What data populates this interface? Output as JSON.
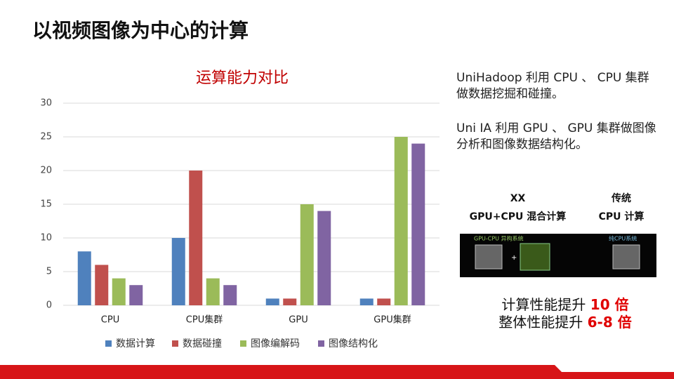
{
  "slide": {
    "title": "以视频图像为中心的计算",
    "notes": [
      "UniHadoop 利用 CPU 、 CPU 集群做数据挖掘和碰撞。",
      "Uni IA  利用 GPU 、 GPU 集群做图像分析和图像数据结构化。"
    ],
    "left_header": [
      "XX",
      "GPU+CPU 混合计算"
    ],
    "right_header": [
      "传统",
      "CPU 计算"
    ],
    "image_labels": [
      "GPU-CPU 异构系统",
      "纯CPU系统"
    ],
    "results": [
      {
        "text": "计算性能提升",
        "highlight": "10 倍"
      },
      {
        "text": "整体性能提升",
        "highlight": "6-8 倍"
      }
    ]
  },
  "chart_data": {
    "type": "bar",
    "title": "运算能力对比",
    "categories": [
      "CPU",
      "CPU集群",
      "GPU",
      "GPU集群"
    ],
    "series": [
      {
        "name": "数据计算",
        "color": "#4f81bd",
        "values": [
          8,
          10,
          1,
          1
        ]
      },
      {
        "name": "数据碰撞",
        "color": "#c0504d",
        "values": [
          6,
          20,
          1,
          1
        ]
      },
      {
        "name": "图像编解码",
        "color": "#9bbb59",
        "values": [
          4,
          4,
          15,
          25
        ]
      },
      {
        "name": "图像结构化",
        "color": "#8064a2",
        "values": [
          3,
          3,
          14,
          24
        ]
      }
    ],
    "ylim": [
      0,
      30
    ],
    "yticks": [
      0,
      5,
      10,
      15,
      20,
      25,
      30
    ],
    "grid": true,
    "legend": "bottom"
  }
}
